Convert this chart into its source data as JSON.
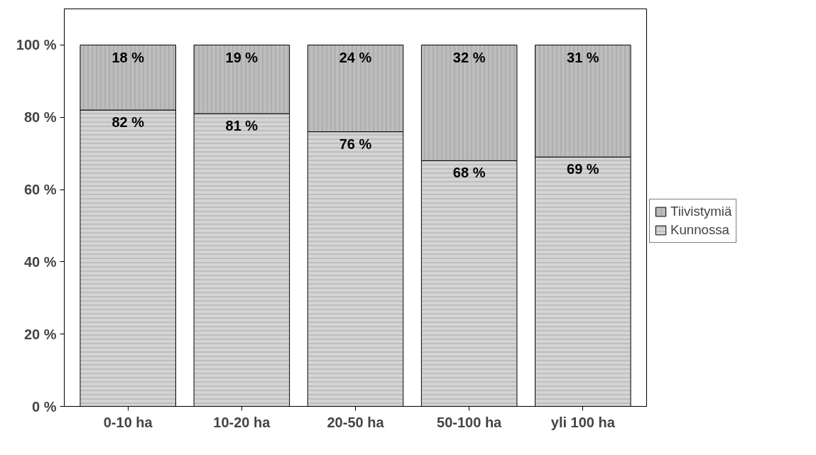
{
  "chart_data": {
    "type": "bar",
    "stacked": true,
    "categories": [
      "0-10 ha",
      "10-20 ha",
      "20-50 ha",
      "50-100 ha",
      "yli 100 ha"
    ],
    "series": [
      {
        "name": "Kunnossa",
        "color": "#d4d4d4",
        "values": [
          82,
          81,
          76,
          68,
          69
        ],
        "value_labels": [
          "82 %",
          "81 %",
          "76 %",
          "68 %",
          "69 %"
        ]
      },
      {
        "name": "Tiivistymiä",
        "color": "#bdbdbd",
        "values": [
          18,
          19,
          24,
          32,
          31
        ],
        "value_labels": [
          "18 %",
          "19 %",
          "24 %",
          "32 %",
          "31 %"
        ]
      }
    ],
    "ylim": [
      0,
      110
    ],
    "yticks": [
      {
        "value": 0,
        "label": "0 %"
      },
      {
        "value": 20,
        "label": "20 %"
      },
      {
        "value": 40,
        "label": "40 %"
      },
      {
        "value": 60,
        "label": "60 %"
      },
      {
        "value": 80,
        "label": "80 %"
      },
      {
        "value": 100,
        "label": "100 %"
      }
    ],
    "grid": false,
    "legend": "right"
  }
}
